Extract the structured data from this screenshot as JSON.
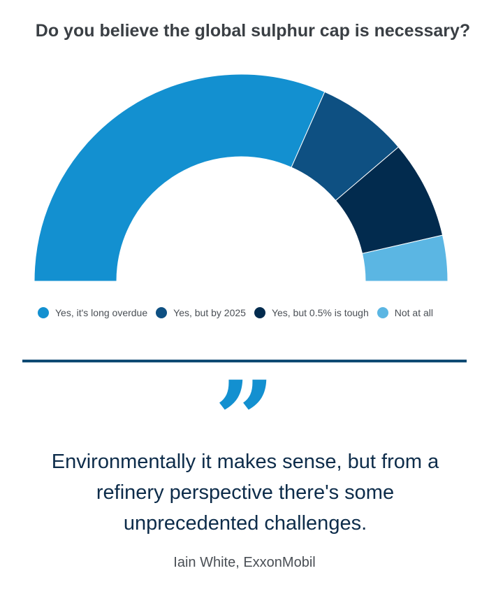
{
  "chart_data": {
    "type": "pie",
    "subtype": "semi-donut",
    "title": "Do you believe the global sulphur cap is necessary?",
    "categories": [
      "Yes, it's long overdue",
      "Yes, but by 2025",
      "Yes, but 0.5% is tough",
      "Not at all"
    ],
    "values": [
      62,
      14,
      15,
      7
    ],
    "colors": [
      "#1390d0",
      "#0e5082",
      "#022b4e",
      "#5bb6e3"
    ],
    "legend_position": "bottom"
  },
  "quote": {
    "mark": "”",
    "text": "Environmentally it makes sense, but from a refinery perspective there's some unprecedented challenges.",
    "attribution": "Iain White, ExxonMobil"
  }
}
